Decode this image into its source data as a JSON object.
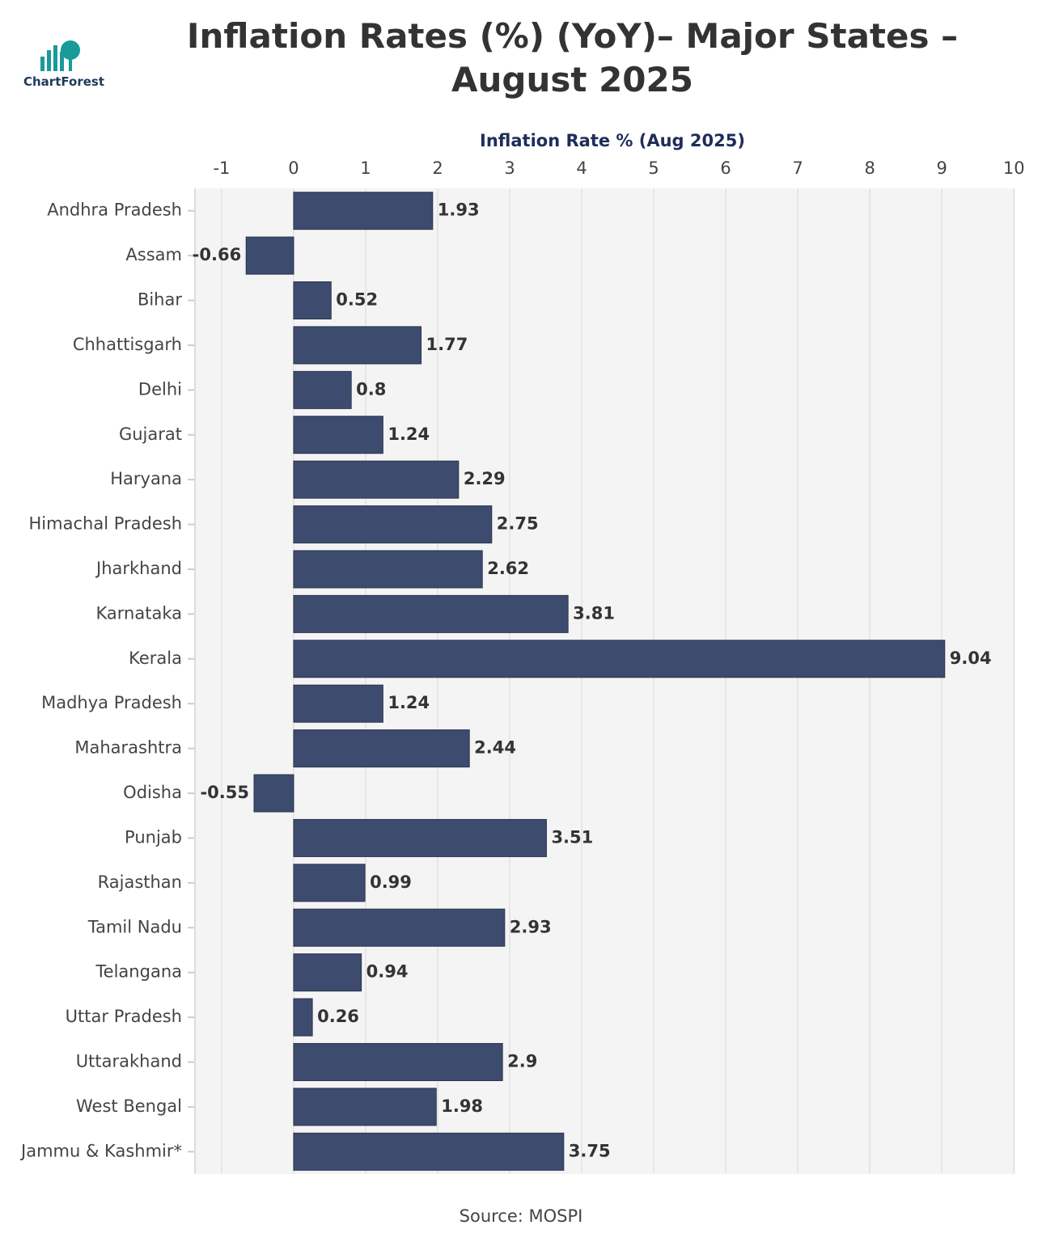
{
  "logo": "ChartForest",
  "chart_data": {
    "type": "bar",
    "orientation": "horizontal",
    "title": "Inflation Rates (%) (YoY)– Major States – August 2025",
    "x_label": "Inflation Rate % (Aug 2025)",
    "source": "Source: MOSPI",
    "categories": [
      "Andhra Pradesh",
      "Assam",
      "Bihar",
      "Chhattisgarh",
      "Delhi",
      "Gujarat",
      "Haryana",
      "Himachal Pradesh",
      "Jharkhand",
      "Karnataka",
      "Kerala",
      "Madhya Pradesh",
      "Maharashtra",
      "Odisha",
      "Punjab",
      "Rajasthan",
      "Tamil Nadu",
      "Telangana",
      "Uttar Pradesh",
      "Uttarakhand",
      "West Bengal",
      "Jammu & Kashmir*"
    ],
    "values": [
      1.93,
      -0.66,
      0.52,
      1.77,
      0.8,
      1.24,
      2.29,
      2.75,
      2.62,
      3.81,
      9.04,
      1.24,
      2.44,
      -0.55,
      3.51,
      0.99,
      2.93,
      0.94,
      0.26,
      2.9,
      1.98,
      3.75
    ],
    "color": "#3d4b6e",
    "xlim": [
      -1.37,
      10.02
    ],
    "xticks": [
      -1,
      0,
      1,
      2,
      3,
      4,
      5,
      6,
      7,
      8,
      9,
      10
    ],
    "grid": true
  }
}
